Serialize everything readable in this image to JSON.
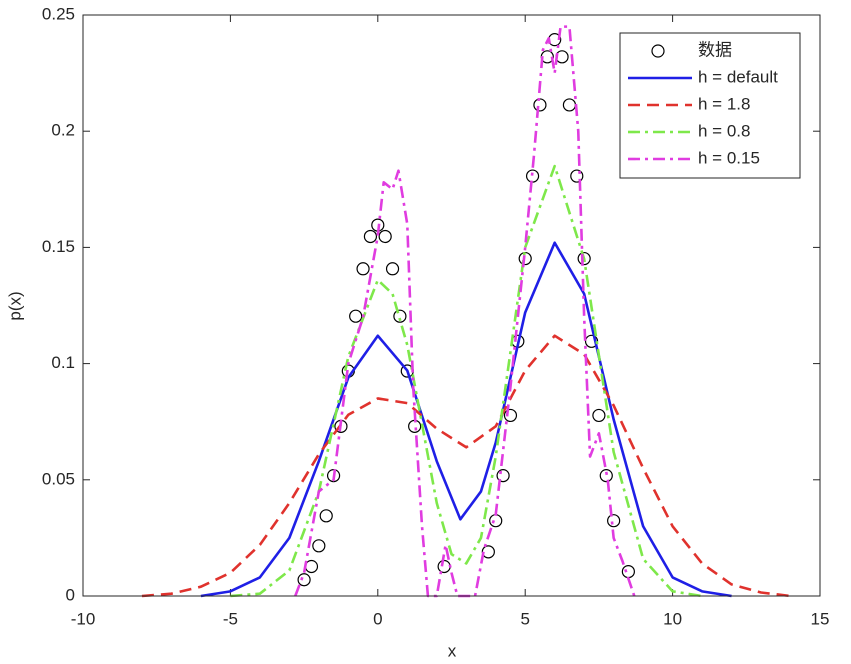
{
  "chart_data": {
    "type": "line",
    "x_label": "x",
    "y_label": "p(x)",
    "xlim": [
      -10,
      15
    ],
    "xticks": [
      -10,
      -5,
      0,
      5,
      10,
      15
    ],
    "ylim": [
      0,
      0.25
    ],
    "yticks": [
      0,
      0.05,
      0.1,
      0.15,
      0.2,
      0.25
    ],
    "legend": "upper right",
    "grid": false,
    "series": [
      {
        "name": "数据",
        "color": "#000000",
        "style": "markers",
        "x": [
          -2.5,
          -2.25,
          -2,
          -1.75,
          -1.5,
          -1.25,
          -1,
          -0.75,
          -0.5,
          -0.25,
          0,
          0.25,
          0.5,
          0.75,
          1,
          1.25,
          2.25,
          3.75,
          4,
          4.25,
          4.5,
          4.75,
          5,
          5.25,
          5.5,
          5.75,
          6,
          6.25,
          6.5,
          6.75,
          7,
          7.25,
          7.5,
          7.75,
          8,
          8.5
        ],
        "values": [
          0.007,
          0.0127,
          0.0216,
          0.0345,
          0.0518,
          0.073,
          0.0968,
          0.1204,
          0.1408,
          0.1547,
          0.1596,
          0.1547,
          0.1408,
          0.1204,
          0.0968,
          0.073,
          0.0127,
          0.019,
          0.0324,
          0.0518,
          0.0777,
          0.1096,
          0.1452,
          0.1807,
          0.2113,
          0.232,
          0.2394,
          0.232,
          0.2113,
          0.1807,
          0.1452,
          0.1096,
          0.0777,
          0.0518,
          0.0324,
          0.0105
        ]
      },
      {
        "name": "h = default",
        "color": "#1f1fe6",
        "style": "solid",
        "x": [
          -6,
          -5,
          -4,
          -3,
          -2,
          -1,
          0,
          1,
          2,
          2.8,
          3.5,
          4,
          5,
          6,
          7,
          8,
          9,
          10,
          11,
          12
        ],
        "values": [
          0,
          0.002,
          0.008,
          0.025,
          0.058,
          0.094,
          0.112,
          0.097,
          0.058,
          0.033,
          0.045,
          0.066,
          0.122,
          0.152,
          0.13,
          0.076,
          0.03,
          0.008,
          0.002,
          0
        ]
      },
      {
        "name": "h = 1.8",
        "color": "#e0322d",
        "style": "dashed",
        "x": [
          -8,
          -7,
          -6,
          -5,
          -4,
          -3,
          -2,
          -1,
          0,
          1,
          2,
          3,
          4,
          5,
          6,
          7,
          8,
          9,
          10,
          11,
          12,
          13,
          14
        ],
        "values": [
          0,
          0.001,
          0.004,
          0.01,
          0.022,
          0.04,
          0.061,
          0.078,
          0.085,
          0.083,
          0.072,
          0.064,
          0.073,
          0.097,
          0.112,
          0.104,
          0.082,
          0.055,
          0.03,
          0.014,
          0.005,
          0.0015,
          0
        ]
      },
      {
        "name": "h = 0.8",
        "color": "#7ee84a",
        "style": "dashdot",
        "x": [
          -5,
          -4,
          -3,
          -2,
          -1,
          0,
          0.5,
          1,
          2,
          2.5,
          3,
          3.5,
          4,
          5,
          6,
          7,
          8,
          9,
          10,
          11
        ],
        "values": [
          0,
          0.001,
          0.011,
          0.045,
          0.103,
          0.136,
          0.13,
          0.108,
          0.04,
          0.018,
          0.014,
          0.025,
          0.06,
          0.15,
          0.185,
          0.145,
          0.062,
          0.016,
          0.002,
          0
        ]
      },
      {
        "name": "h = 0.15",
        "color": "#e03ce0",
        "style": "dashdot",
        "x": [
          -2.8,
          -2.5,
          -2,
          -1.5,
          -1,
          -0.5,
          0,
          0.2,
          0.5,
          0.7,
          1,
          1.2,
          1.5,
          1.7,
          2,
          2.3,
          2.5,
          2.7,
          3.3,
          3.6,
          4,
          4.5,
          5,
          5.3,
          5.6,
          5.8,
          6,
          6.2,
          6.5,
          6.8,
          7,
          7.2,
          7.5,
          7.8,
          8,
          8.3,
          8.7
        ],
        "values": [
          0,
          0.01,
          0.045,
          0.05,
          0.1,
          0.12,
          0.155,
          0.178,
          0.175,
          0.183,
          0.16,
          0.09,
          0.03,
          0,
          0,
          0.022,
          0.01,
          0,
          0,
          0.02,
          0.035,
          0.09,
          0.15,
          0.19,
          0.235,
          0.24,
          0.225,
          0.245,
          0.245,
          0.2,
          0.12,
          0.06,
          0.07,
          0.05,
          0.025,
          0.015,
          0
        ]
      }
    ]
  }
}
